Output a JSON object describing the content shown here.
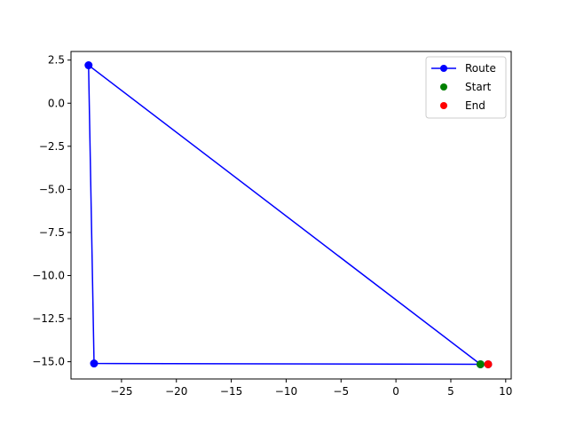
{
  "chart_data": {
    "type": "line",
    "title": "",
    "xlabel": "",
    "ylabel": "",
    "xlim": [
      -29.6,
      10.5
    ],
    "ylim": [
      -16.0,
      3.0
    ],
    "x_ticks": [
      -25,
      -20,
      -15,
      -10,
      -5,
      0,
      5,
      10
    ],
    "x_tick_labels": [
      "−25",
      "−20",
      "−15",
      "−10",
      "−5",
      "0",
      "5",
      "10"
    ],
    "y_ticks": [
      2.5,
      0.0,
      -2.5,
      -5.0,
      -7.5,
      -10.0,
      -12.5,
      -15.0
    ],
    "y_tick_labels": [
      "2.5",
      "0.0",
      "−2.5",
      "−5.0",
      "−7.5",
      "−10.0",
      "−12.5",
      "−15.0"
    ],
    "grid": false,
    "legend_position": "top-right",
    "series": [
      {
        "name": "Route",
        "color": "#0000ff",
        "marker": "circle",
        "points": [
          {
            "x": 7.7,
            "y": -15.15
          },
          {
            "x": -28.0,
            "y": 2.2
          },
          {
            "x": -27.5,
            "y": -15.1
          },
          {
            "x": 8.4,
            "y": -15.15
          }
        ]
      },
      {
        "name": "Start",
        "color": "#008000",
        "marker": "circle",
        "line": false,
        "points": [
          {
            "x": 7.7,
            "y": -15.15
          }
        ]
      },
      {
        "name": "End",
        "color": "#ff0000",
        "marker": "circle",
        "line": false,
        "points": [
          {
            "x": 8.4,
            "y": -15.15
          }
        ]
      }
    ]
  }
}
